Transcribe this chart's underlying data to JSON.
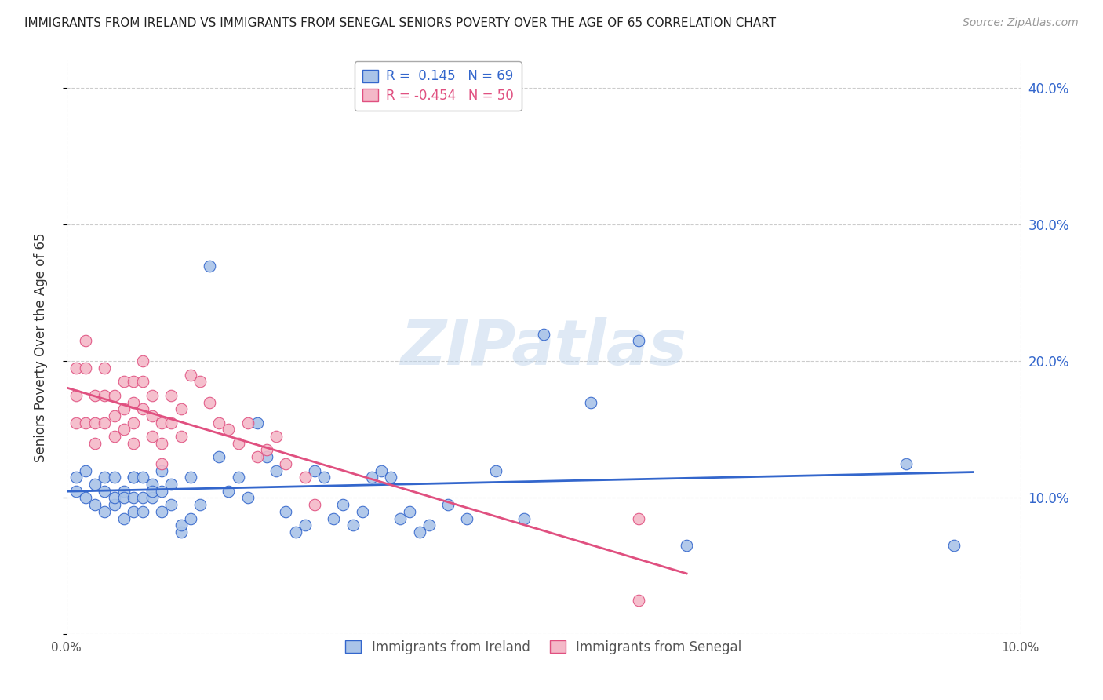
{
  "title": "IMMIGRANTS FROM IRELAND VS IMMIGRANTS FROM SENEGAL SENIORS POVERTY OVER THE AGE OF 65 CORRELATION CHART",
  "source": "Source: ZipAtlas.com",
  "ylabel": "Seniors Poverty Over the Age of 65",
  "xlim": [
    0.0,
    0.1
  ],
  "ylim": [
    0.0,
    0.42
  ],
  "right_yticks": [
    0.0,
    0.1,
    0.2,
    0.3,
    0.4
  ],
  "right_yticklabels": [
    "",
    "10.0%",
    "20.0%",
    "30.0%",
    "40.0%"
  ],
  "grid_color": "#cccccc",
  "background_color": "#ffffff",
  "ireland_color": "#aac4e8",
  "senegal_color": "#f4b8c8",
  "ireland_line_color": "#3366cc",
  "senegal_line_color": "#e05080",
  "ireland_R": 0.145,
  "ireland_N": 69,
  "senegal_R": -0.454,
  "senegal_N": 50,
  "legend_label_ireland": "Immigrants from Ireland",
  "legend_label_senegal": "Immigrants from Senegal",
  "watermark": "ZIPatlas",
  "ireland_x": [
    0.001,
    0.001,
    0.002,
    0.002,
    0.003,
    0.003,
    0.004,
    0.004,
    0.004,
    0.005,
    0.005,
    0.005,
    0.006,
    0.006,
    0.006,
    0.007,
    0.007,
    0.007,
    0.007,
    0.008,
    0.008,
    0.008,
    0.009,
    0.009,
    0.009,
    0.01,
    0.01,
    0.01,
    0.011,
    0.011,
    0.012,
    0.012,
    0.013,
    0.013,
    0.014,
    0.015,
    0.016,
    0.017,
    0.018,
    0.019,
    0.02,
    0.021,
    0.022,
    0.023,
    0.024,
    0.025,
    0.026,
    0.027,
    0.028,
    0.029,
    0.03,
    0.031,
    0.032,
    0.033,
    0.034,
    0.035,
    0.036,
    0.037,
    0.038,
    0.04,
    0.042,
    0.045,
    0.048,
    0.05,
    0.055,
    0.06,
    0.065,
    0.088,
    0.093
  ],
  "ireland_y": [
    0.115,
    0.105,
    0.1,
    0.12,
    0.11,
    0.095,
    0.105,
    0.09,
    0.115,
    0.095,
    0.1,
    0.115,
    0.105,
    0.085,
    0.1,
    0.115,
    0.09,
    0.1,
    0.115,
    0.1,
    0.115,
    0.09,
    0.11,
    0.1,
    0.105,
    0.12,
    0.09,
    0.105,
    0.11,
    0.095,
    0.075,
    0.08,
    0.115,
    0.085,
    0.095,
    0.27,
    0.13,
    0.105,
    0.115,
    0.1,
    0.155,
    0.13,
    0.12,
    0.09,
    0.075,
    0.08,
    0.12,
    0.115,
    0.085,
    0.095,
    0.08,
    0.09,
    0.115,
    0.12,
    0.115,
    0.085,
    0.09,
    0.075,
    0.08,
    0.095,
    0.085,
    0.12,
    0.085,
    0.22,
    0.17,
    0.215,
    0.065,
    0.125,
    0.065
  ],
  "senegal_x": [
    0.001,
    0.001,
    0.001,
    0.002,
    0.002,
    0.002,
    0.003,
    0.003,
    0.003,
    0.004,
    0.004,
    0.004,
    0.005,
    0.005,
    0.005,
    0.006,
    0.006,
    0.006,
    0.007,
    0.007,
    0.007,
    0.007,
    0.008,
    0.008,
    0.008,
    0.009,
    0.009,
    0.009,
    0.01,
    0.01,
    0.01,
    0.011,
    0.011,
    0.012,
    0.012,
    0.013,
    0.014,
    0.015,
    0.016,
    0.017,
    0.018,
    0.019,
    0.02,
    0.021,
    0.022,
    0.023,
    0.025,
    0.026,
    0.06,
    0.06
  ],
  "senegal_y": [
    0.195,
    0.175,
    0.155,
    0.215,
    0.195,
    0.155,
    0.175,
    0.155,
    0.14,
    0.195,
    0.175,
    0.155,
    0.175,
    0.16,
    0.145,
    0.185,
    0.165,
    0.15,
    0.185,
    0.17,
    0.155,
    0.14,
    0.2,
    0.185,
    0.165,
    0.175,
    0.16,
    0.145,
    0.155,
    0.14,
    0.125,
    0.175,
    0.155,
    0.165,
    0.145,
    0.19,
    0.185,
    0.17,
    0.155,
    0.15,
    0.14,
    0.155,
    0.13,
    0.135,
    0.145,
    0.125,
    0.115,
    0.095,
    0.085,
    0.025
  ]
}
